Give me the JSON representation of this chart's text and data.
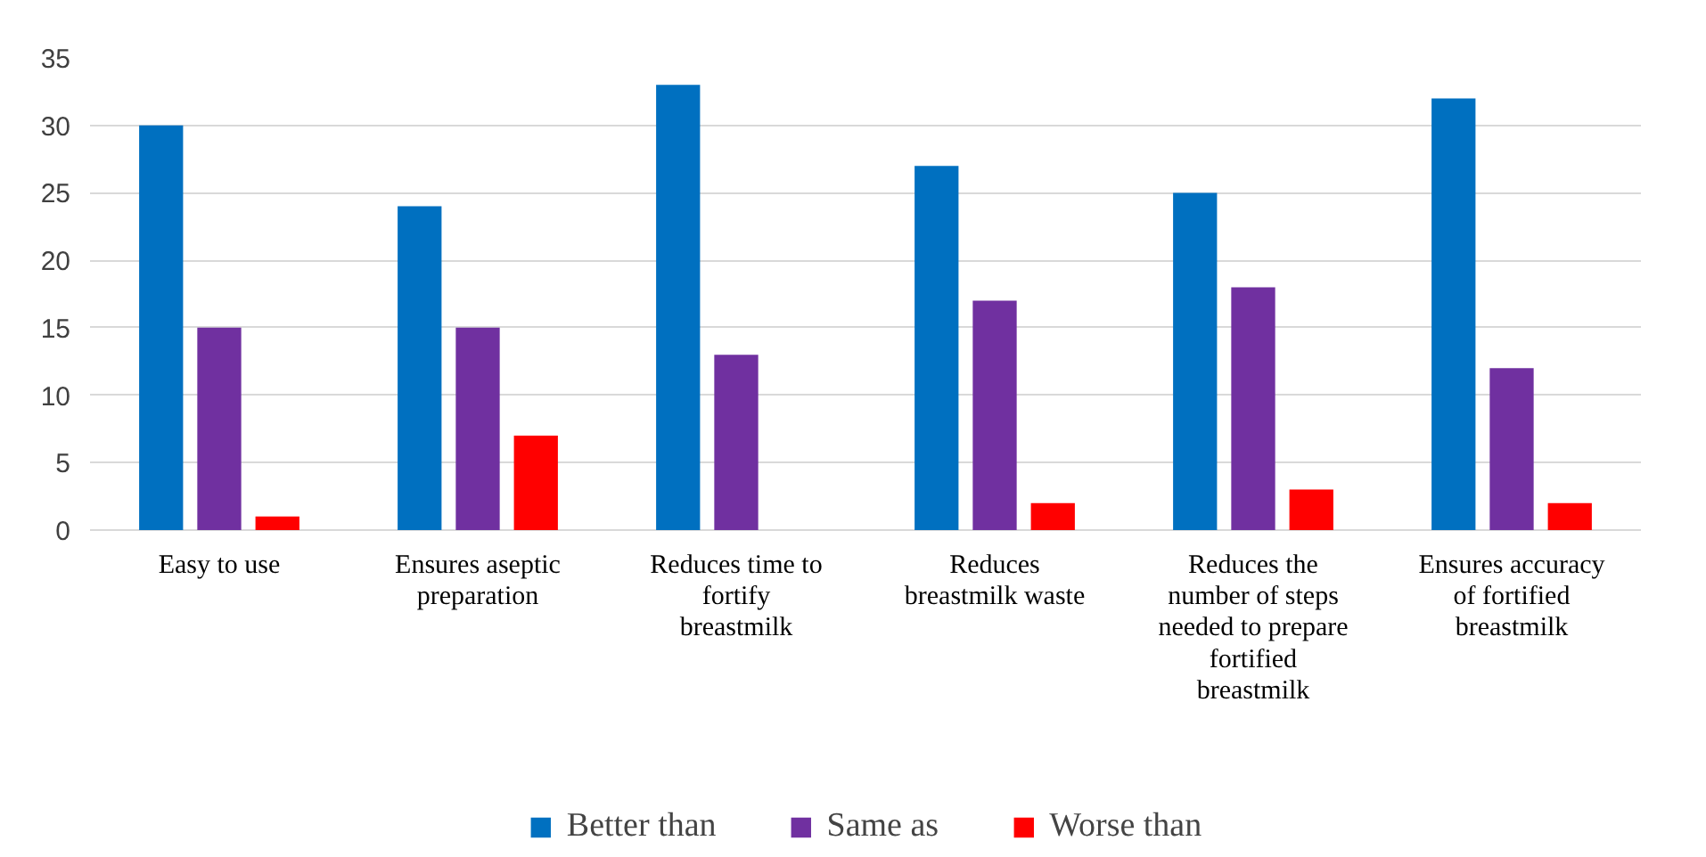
{
  "chart_data": {
    "type": "bar",
    "categories": [
      "Easy to use",
      "Ensures aseptic preparation",
      "Reduces time to fortify breastmilk",
      "Reduces breastmilk waste",
      "Reduces the number of steps needed to prepare fortified breastmilk",
      "Ensures accuracy of fortified breastmilk"
    ],
    "series": [
      {
        "name": "Better than",
        "color": "#0070c0",
        "values": [
          30,
          24,
          33,
          27,
          25,
          32
        ]
      },
      {
        "name": "Same as",
        "color": "#7030a0",
        "values": [
          15,
          15,
          13,
          17,
          18,
          12
        ]
      },
      {
        "name": "Worse than",
        "color": "#ff0000",
        "values": [
          1,
          7,
          0,
          2,
          3,
          2
        ]
      }
    ],
    "ylim": [
      0,
      35
    ],
    "yticks": [
      0,
      5,
      10,
      15,
      20,
      25,
      30,
      35
    ],
    "grid": "y",
    "legend": "bottom"
  }
}
